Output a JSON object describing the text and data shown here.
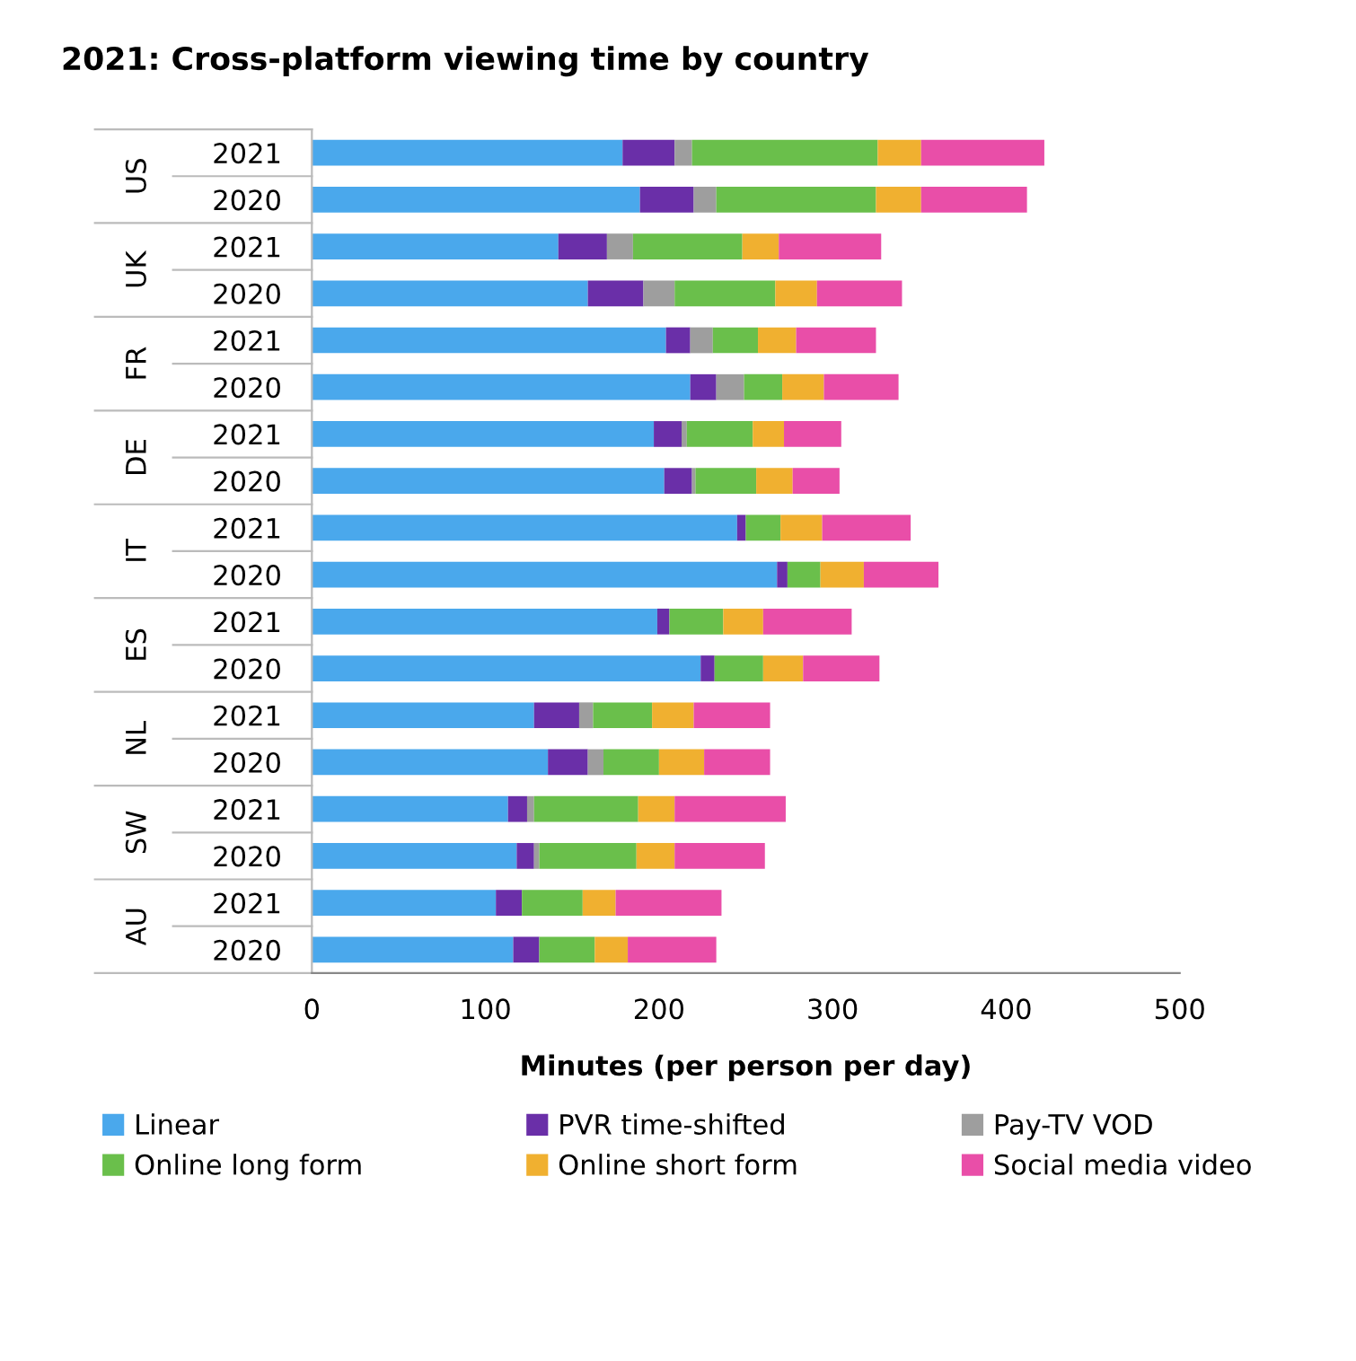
{
  "chart_data": {
    "type": "bar",
    "orientation": "horizontal",
    "stacked": true,
    "title": "2021: Cross-platform viewing time by country",
    "xlabel": "Minutes (per person per day)",
    "categories": [
      "2021",
      "2020",
      "2021",
      "2020",
      "2021",
      "2020",
      "2021",
      "2020",
      "2021",
      "2020",
      "2021",
      "2020",
      "2021",
      "2020",
      "2021",
      "2020",
      "2021",
      "2020"
    ],
    "annotations": [
      "US",
      "UK",
      "FR",
      "DE",
      "IT",
      "ES",
      "NL",
      "SW",
      "AU"
    ],
    "series": [
      {
        "name": "Linear",
        "color": "#4aa8ec",
        "values": [
          179,
          189,
          142,
          159,
          204,
          218,
          197,
          203,
          245,
          268,
          199,
          224,
          128,
          136,
          113,
          118,
          106,
          116
        ]
      },
      {
        "name": "PVR time-shifted",
        "color": "#6a2fa8",
        "values": [
          30,
          31,
          28,
          32,
          14,
          15,
          16,
          16,
          5,
          6,
          7,
          8,
          26,
          23,
          11,
          10,
          15,
          15
        ]
      },
      {
        "name": "Pay-TV VOD",
        "color": "#9e9e9e",
        "values": [
          10,
          13,
          15,
          18,
          13,
          16,
          3,
          2,
          0,
          0,
          0,
          0,
          8,
          9,
          4,
          3,
          0,
          0
        ]
      },
      {
        "name": "Online long form",
        "color": "#6abf4b",
        "values": [
          107,
          92,
          63,
          58,
          26,
          22,
          38,
          35,
          20,
          19,
          31,
          28,
          34,
          32,
          60,
          56,
          35,
          32
        ]
      },
      {
        "name": "Online short form",
        "color": "#f0b030",
        "values": [
          25,
          26,
          21,
          24,
          22,
          24,
          18,
          21,
          24,
          25,
          23,
          23,
          24,
          26,
          21,
          22,
          19,
          19
        ]
      },
      {
        "name": "Social media video",
        "color": "#e94ea8",
        "values": [
          71,
          61,
          59,
          49,
          46,
          43,
          33,
          27,
          51,
          43,
          51,
          44,
          44,
          38,
          64,
          52,
          61,
          51
        ]
      }
    ],
    "xlim": [
      0,
      500
    ],
    "xticks": [
      0,
      100,
      200,
      300,
      400,
      500
    ],
    "grid": false,
    "legend": "bottom"
  }
}
